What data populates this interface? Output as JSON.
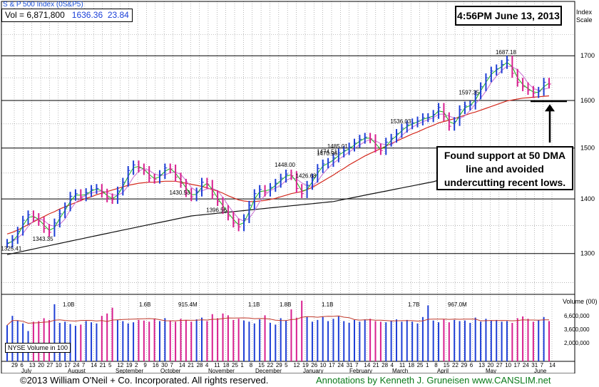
{
  "header": {
    "title": "S & P 500 Index",
    "symbol": "(0S&P5)",
    "vol_label": "Vol = 6,871,800",
    "price": "1636.36",
    "change": "23.84",
    "timestamp": "4:56PM June 13, 2013",
    "scale_label_1": "Index",
    "scale_label_2": "Scale"
  },
  "annotation_note": {
    "line1": "Found support at 50 DMA",
    "line2": "line and avoided",
    "line3": "undercutting recent lows."
  },
  "volume_panel": {
    "label": "NYSE Volume in 100",
    "unit_label": "Volume (00)",
    "ticks": [
      "6,600,000",
      "3,600,000",
      "2,000,000"
    ],
    "peak_labels": [
      "1.0B",
      "1.6B",
      "915.4M",
      "1.1B",
      "1.8B",
      "1.1B",
      "1.7B",
      "967.0M"
    ]
  },
  "footer": {
    "copyright": "©2013 William O'Neil + Co. Incorporated. All rights reserved.",
    "annotation": "Annotations by Kenneth J. Gruneisen www.CANSLIM.net"
  },
  "colors": {
    "up_bar": "#1f3fd6",
    "down_bar": "#d81f8f",
    "ma10": "#19b419",
    "ma20": "#c86ed2",
    "ma50": "#d42a1e",
    "ma200": "#111111",
    "vol_avg": "#c0392b"
  },
  "chart_data": {
    "type": "line",
    "title": "S & P 500 Index",
    "ylabel": "Index Scale",
    "yscale": "log",
    "ylim": [
      1230,
      1830
    ],
    "yticks": [
      1300,
      1400,
      1500,
      1600,
      1700
    ],
    "x_day_labels": [
      "29",
      "6",
      "13",
      "20",
      "27",
      "10",
      "17",
      "24",
      "7",
      "14",
      "21",
      "5",
      "12",
      "19",
      "2",
      "9",
      "16",
      "30",
      "7",
      "14",
      "21",
      "28",
      "4",
      "11",
      "18",
      "25",
      "1",
      "8",
      "15",
      "22",
      "29",
      "5",
      "12",
      "19",
      "26",
      "10",
      "17",
      "24",
      "31",
      "7",
      "14",
      "21",
      "28",
      "4",
      "11",
      "18",
      "25",
      "1",
      "8",
      "15",
      "22",
      "29",
      "6",
      "13",
      "20",
      "27",
      "10",
      "17",
      "24",
      "31",
      "7",
      "14"
    ],
    "x_month_labels": [
      "July",
      "August",
      "September",
      "October",
      "November",
      "December",
      "January",
      "February",
      "March",
      "April",
      "May",
      "June"
    ],
    "x_range": [
      "2012-06-29",
      "2013-06-14"
    ],
    "price_labels": [
      {
        "text": "1325.41",
        "value": 1325.41
      },
      {
        "text": "1426.68",
        "value": 1426.68
      },
      {
        "text": "1396.56",
        "value": 1396.56
      },
      {
        "text": "1474.51",
        "value": 1474.51
      },
      {
        "text": "1430.53",
        "value": 1430.53
      },
      {
        "text": "1470.96",
        "value": 1470.96
      },
      {
        "text": "1343.35",
        "value": 1343.35
      },
      {
        "text": "1448.00",
        "value": 1448.0
      },
      {
        "text": "1485.01",
        "value": 1485.01
      },
      {
        "text": "1597.35",
        "value": 1597.35
      },
      {
        "text": "1536.03",
        "value": 1536.03
      },
      {
        "text": "1687.18",
        "value": 1687.18
      }
    ],
    "support_level": 1598,
    "series": [
      {
        "values": [
          1318,
          1325,
          1340,
          1360,
          1370,
          1365,
          1358,
          1345,
          1338,
          1355,
          1372,
          1385,
          1405,
          1410,
          1404,
          1412,
          1418,
          1420,
          1411,
          1402,
          1399,
          1415,
          1432,
          1455,
          1466,
          1460,
          1455,
          1440,
          1438,
          1447,
          1460,
          1458,
          1442,
          1430,
          1412,
          1404,
          1413,
          1432,
          1428,
          1408,
          1395,
          1380,
          1368,
          1355,
          1348,
          1363,
          1388,
          1410,
          1418,
          1413,
          1422,
          1430,
          1440,
          1448,
          1445,
          1420,
          1410,
          1426,
          1440,
          1459,
          1468,
          1471,
          1480,
          1490,
          1495,
          1502,
          1510,
          1518,
          1522,
          1519,
          1500,
          1495,
          1512,
          1520,
          1530,
          1541,
          1548,
          1552,
          1556,
          1563,
          1563,
          1570,
          1585,
          1565,
          1545,
          1555,
          1580,
          1588,
          1590,
          1612,
          1630,
          1650,
          1665,
          1670,
          1680,
          1690,
          1660,
          1640,
          1630,
          1622,
          1615,
          1620,
          1640,
          1636
        ]
      },
      {
        "name": "50-day",
        "values": [
          1335,
          1338,
          1342,
          1347,
          1352,
          1357,
          1362,
          1367,
          1372,
          1376,
          1381,
          1385,
          1389,
          1393,
          1397,
          1401,
          1404,
          1408,
          1411,
          1414,
          1417,
          1420,
          1423,
          1426,
          1428,
          1430,
          1431,
          1432,
          1432,
          1433,
          1434,
          1434,
          1434,
          1432,
          1430,
          1428,
          1426,
          1424,
          1421,
          1418,
          1415,
          1411,
          1406,
          1402,
          1398,
          1396,
          1395,
          1395,
          1396,
          1397,
          1399,
          1401,
          1404,
          1407,
          1410,
          1412,
          1414,
          1418,
          1422,
          1428,
          1434,
          1440,
          1446,
          1453,
          1459,
          1466,
          1472,
          1478,
          1484,
          1489,
          1494,
          1499,
          1504,
          1509,
          1514,
          1519,
          1524,
          1529,
          1533,
          1538,
          1543,
          1547,
          1552,
          1555,
          1558,
          1561,
          1565,
          1568,
          1572,
          1575,
          1579,
          1583,
          1587,
          1591,
          1595,
          1599,
          1601,
          1603,
          1605,
          1606,
          1607,
          1608,
          1609,
          1610
        ]
      },
      {
        "name": "200-day",
        "values": [
          1298,
          1300,
          1302,
          1304,
          1306,
          1308,
          1310,
          1312,
          1314,
          1316,
          1318,
          1320,
          1322,
          1324,
          1326,
          1328,
          1330,
          1332,
          1334,
          1336,
          1338,
          1340,
          1342,
          1344,
          1346,
          1348,
          1350,
          1352,
          1354,
          1356,
          1358,
          1360,
          1362,
          1364,
          1366,
          1368,
          1369,
          1370,
          1371,
          1372,
          1373,
          1374,
          1375,
          1376,
          1377,
          1378,
          1379,
          1380,
          1381,
          1382,
          1383,
          1384,
          1385,
          1386,
          1387,
          1388,
          1389,
          1390,
          1391,
          1392,
          1393,
          1394,
          1395,
          1397,
          1399,
          1401,
          1403,
          1405,
          1407,
          1409,
          1411,
          1413,
          1415,
          1417,
          1419,
          1421,
          1423,
          1425,
          1427,
          1429,
          1431,
          1433,
          1436,
          1438,
          1440,
          1443,
          1446,
          1449,
          1452,
          1455,
          1458,
          1461,
          1464,
          1467,
          1470,
          1474,
          1477,
          1480,
          1483,
          1486,
          1489,
          1492,
          1495,
          1498
        ]
      }
    ],
    "volume_values": [
      6200,
      7800,
      7000,
      6500,
      5200,
      6800,
      6900,
      7400,
      7100,
      9800,
      6600,
      6800,
      6400,
      6100,
      6300,
      6900,
      6700,
      6500,
      7800,
      8200,
      9200,
      7100,
      6900,
      6500,
      6700,
      7100,
      7000,
      6800,
      7300,
      6900,
      7400,
      7000,
      6800,
      7300,
      7100,
      6800,
      7200,
      7500,
      6900,
      8100,
      7400,
      8200,
      7900,
      7100,
      7300,
      7000,
      6800,
      6500,
      7200,
      7900,
      6600,
      6300,
      7400,
      7000,
      8900,
      7500,
      10400,
      7600,
      6800,
      7100,
      7600,
      6900,
      7300,
      7700,
      6900,
      6600,
      7100,
      6800,
      7200,
      7300,
      6900,
      6800,
      6700,
      7000,
      7200,
      6800,
      7100,
      6800,
      6500,
      7600,
      9600,
      7000,
      6700,
      7200,
      6700,
      7100,
      6900,
      7000,
      6600,
      7500,
      6800,
      7300,
      7000,
      7100,
      6800,
      6900,
      6600,
      7400,
      7700,
      7300,
      6800,
      7100,
      7600,
      6900
    ],
    "grid": true
  }
}
